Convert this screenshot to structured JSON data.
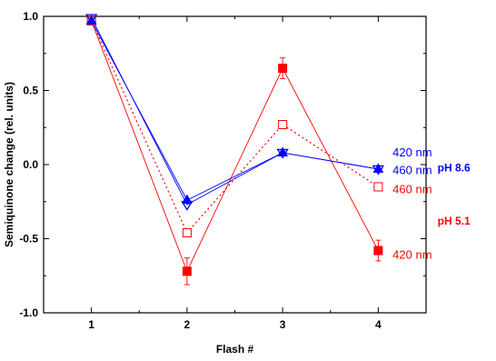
{
  "chart_data": {
    "type": "line",
    "title": "",
    "xlabel": "Flash #",
    "ylabel": "Semiquinone change (rel. units)",
    "xlim": [
      0.5,
      4.5
    ],
    "ylim": [
      -1.0,
      1.0
    ],
    "x_ticks": [
      "1",
      "2",
      "3",
      "4"
    ],
    "y_ticks": [
      "1.0",
      "0.5",
      "0.0",
      "-0.5",
      "-1.0"
    ],
    "grid": false,
    "x": [
      1,
      2,
      3,
      4
    ],
    "series": [
      {
        "name": "pH 5.1, 420 nm",
        "color": "#ff0000",
        "line_style": "solid",
        "marker": "filled-square",
        "values": [
          0.97,
          -0.72,
          0.65,
          -0.58
        ],
        "error": [
          0,
          0.09,
          0.07,
          0.07
        ]
      },
      {
        "name": "pH 5.1, 460 nm",
        "color": "#ff0000",
        "line_style": "dotted",
        "marker": "open-square",
        "values": [
          0.97,
          -0.46,
          0.27,
          -0.15
        ],
        "error": [
          0,
          0,
          0,
          0
        ]
      },
      {
        "name": "pH 8.6, 420 nm",
        "color": "#0000ff",
        "line_style": "solid",
        "marker": "up-triangle",
        "values": [
          0.97,
          -0.24,
          0.08,
          -0.03
        ],
        "error": [
          0,
          0,
          0,
          0
        ]
      },
      {
        "name": "pH 8.6, 460 nm",
        "color": "#0000ff",
        "line_style": "solid",
        "marker": "open-down-triangle",
        "values": [
          0.99,
          -0.27,
          0.08,
          -0.03
        ],
        "error": [
          0,
          0,
          0,
          0
        ]
      }
    ],
    "annotations": [
      {
        "text": "420 nm",
        "color": "#0000ff",
        "weight": "normal",
        "x": 4.15,
        "y": 0.08
      },
      {
        "text": "460 nm",
        "color": "#0000ff",
        "weight": "normal",
        "x": 4.15,
        "y": -0.04
      },
      {
        "text": "pH 8.6",
        "color": "#0000ff",
        "weight": "bold",
        "x": 4.62,
        "y": -0.02
      },
      {
        "text": "460 nm",
        "color": "#ff0000",
        "weight": "normal",
        "x": 4.15,
        "y": -0.17
      },
      {
        "text": "pH 5.1",
        "color": "#ff0000",
        "weight": "bold",
        "x": 4.62,
        "y": -0.38
      },
      {
        "text": "420 nm",
        "color": "#ff0000",
        "weight": "normal",
        "x": 4.15,
        "y": -0.61
      }
    ]
  }
}
